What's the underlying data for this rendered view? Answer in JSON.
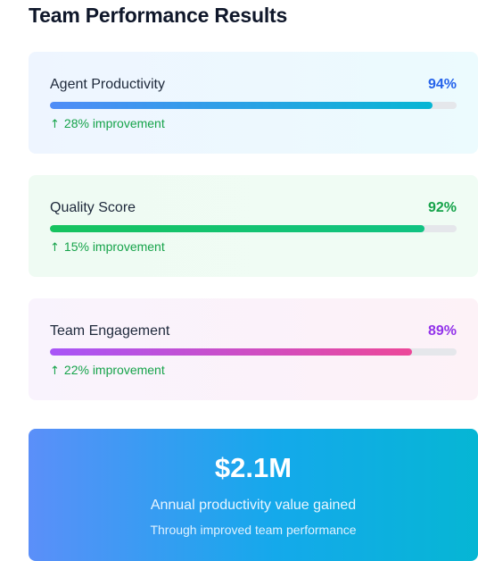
{
  "header": {
    "title": "Team Performance Results"
  },
  "metrics": [
    {
      "label": "Agent Productivity",
      "value_text": "94%",
      "value": 94,
      "improvement": "28% improvement",
      "value_color": "#2563eb",
      "bar_gradient": [
        "#4f8cf7",
        "#06b6d4"
      ]
    },
    {
      "label": "Quality Score",
      "value_text": "92%",
      "value": 92,
      "improvement": "15% improvement",
      "value_color": "#16a34a",
      "bar_gradient": [
        "#16c35f",
        "#10c382"
      ]
    },
    {
      "label": "Team Engagement",
      "value_text": "89%",
      "value": 89,
      "improvement": "22% improvement",
      "value_color": "#9333ea",
      "bar_gradient": [
        "#a855f7",
        "#ec4899"
      ]
    }
  ],
  "improvement_icon": "arrow-up-icon",
  "summary": {
    "value": "$2.1M",
    "caption": "Annual productivity value gained",
    "subcaption": "Through improved team performance"
  }
}
